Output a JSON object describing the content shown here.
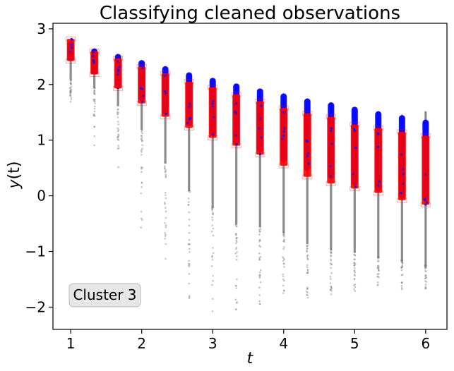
{
  "chart_data": {
    "type": "scatter",
    "title": "Classifying cleaned observations",
    "xlabel": "t",
    "ylabel": "y(t)",
    "xlim": [
      0.75,
      6.3
    ],
    "ylim": [
      -2.4,
      3.1
    ],
    "xticks": [
      1,
      2,
      3,
      4,
      5,
      6
    ],
    "yticks": [
      -2,
      -1,
      0,
      1,
      2,
      3
    ],
    "xtick_labels": [
      "1",
      "2",
      "3",
      "4",
      "5",
      "6"
    ],
    "ytick_labels": [
      "−2",
      "−1",
      "0",
      "1",
      "2",
      "3"
    ],
    "annotation": "Cluster 3",
    "grid": false,
    "colors": {
      "gray": "#808080",
      "blue": "#0000ff",
      "red": "#ff0000"
    },
    "x": [
      1.0,
      1.333,
      1.667,
      2.0,
      2.333,
      2.667,
      3.0,
      3.333,
      3.667,
      4.0,
      4.333,
      4.667,
      5.0,
      5.333,
      5.667,
      6.0
    ],
    "series": [
      {
        "color": "gray",
        "y_min": [
          1.67,
          0.9,
          0.45,
          -0.65,
          -1.45,
          -1.9,
          -2.1,
          -2.15,
          -2.05,
          -1.95,
          -1.85,
          -1.8,
          -1.75,
          -1.72,
          -1.7,
          -1.72
        ],
        "y_dense_low": [
          2.1,
          1.95,
          1.65,
          1.2,
          0.6,
          0.1,
          -0.2,
          -0.5,
          -0.55,
          -0.65,
          -0.85,
          -0.95,
          -1.0,
          -1.1,
          -1.15,
          -1.25
        ],
        "y_max": [
          2.72,
          2.62,
          2.5,
          2.4,
          2.3,
          2.18,
          2.08,
          1.98,
          1.9,
          1.8,
          1.72,
          1.65,
          1.58,
          1.5,
          1.44,
          1.5
        ]
      },
      {
        "color": "blue",
        "y_min": [
          2.42,
          2.18,
          1.92,
          1.7,
          1.45,
          1.25,
          1.08,
          0.92,
          0.78,
          0.6,
          0.45,
          0.3,
          0.18,
          0.08,
          -0.05,
          -0.1
        ],
        "y_max": [
          2.78,
          2.65,
          2.55,
          2.44,
          2.33,
          2.22,
          2.12,
          2.02,
          1.93,
          1.84,
          1.75,
          1.68,
          1.6,
          1.52,
          1.45,
          1.37
        ]
      },
      {
        "color": "red",
        "y_min": [
          2.42,
          2.18,
          1.93,
          1.66,
          1.42,
          1.22,
          1.04,
          0.9,
          0.74,
          0.54,
          0.34,
          0.22,
          0.13,
          0.05,
          -0.08,
          -0.16
        ],
        "y_max": [
          2.82,
          2.6,
          2.47,
          2.32,
          2.2,
          2.05,
          1.95,
          1.82,
          1.7,
          1.58,
          1.48,
          1.42,
          1.28,
          1.22,
          1.15,
          1.08
        ]
      }
    ]
  }
}
